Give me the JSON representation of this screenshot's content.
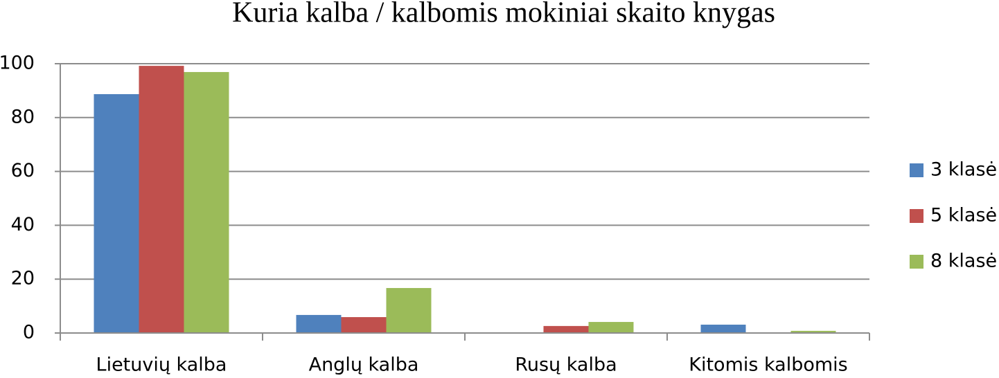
{
  "chart_data": {
    "type": "bar",
    "title": "Kuria kalba / kalbomis mokiniai skaito knygas",
    "categories": [
      "Lietuvių kalba",
      "Anglų kalba",
      "Rusų kalba",
      "Kitomis kalbomis"
    ],
    "series": [
      {
        "name": "3 klasė",
        "color": "#4f81bd",
        "values": [
          88.7,
          6.7,
          0,
          3.1
        ]
      },
      {
        "name": "5 klasė",
        "color": "#c0504d",
        "values": [
          99.2,
          5.9,
          2.6,
          0
        ]
      },
      {
        "name": "8 klasė",
        "color": "#9bbb59",
        "values": [
          96.9,
          16.7,
          4.1,
          0.8
        ]
      }
    ],
    "ylim": [
      0,
      100
    ],
    "yticks": [
      0,
      20,
      40,
      60,
      80,
      100
    ],
    "grid": true,
    "legend": "right"
  }
}
